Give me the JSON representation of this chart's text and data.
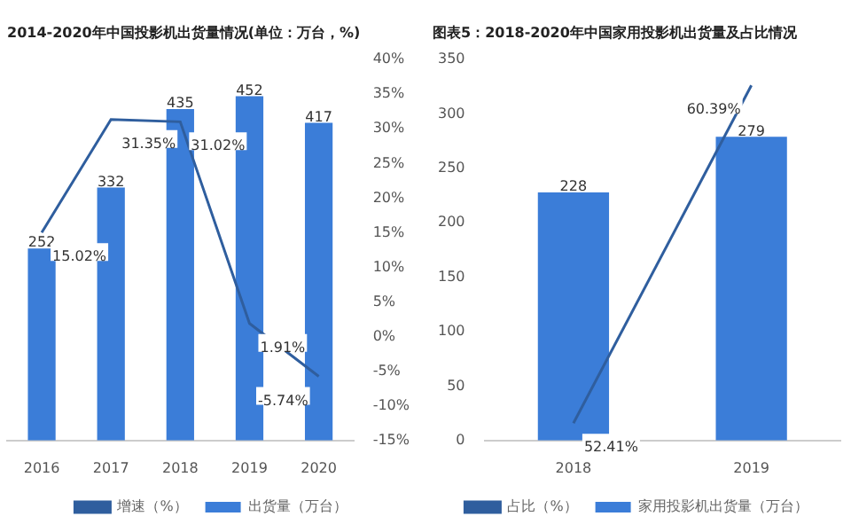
{
  "chart_data": [
    {
      "type": "bar",
      "title": "2014-2020年中国投影机出货量情况(单位：万台，%)",
      "categories": [
        "2016",
        "2017",
        "2018",
        "2019",
        "2020"
      ],
      "series": [
        {
          "name": "出货量（万台）",
          "color": "#3b7dd8",
          "values": [
            252,
            332,
            435,
            452,
            417
          ],
          "value_labels": [
            "252",
            "332",
            "435",
            "452",
            "417"
          ]
        },
        {
          "type": "line",
          "name": "增速（%）",
          "color": "#2f5e9e",
          "axis": "y2",
          "values": [
            15.02,
            31.35,
            31.02,
            1.91,
            -5.74
          ],
          "value_labels": [
            "15.02%",
            "31.35%",
            "31.02%",
            "1.91%",
            "-5.74%"
          ]
        }
      ],
      "y2lim": [
        -15,
        40
      ],
      "y2ticks": [
        {
          "value": -15,
          "label": "-15%"
        },
        {
          "value": -10,
          "label": "-10%"
        },
        {
          "value": -5,
          "label": "-5%"
        },
        {
          "value": 0,
          "label": "0%"
        },
        {
          "value": 5,
          "label": "5%"
        },
        {
          "value": 10,
          "label": "10%"
        },
        {
          "value": 15,
          "label": "15%"
        },
        {
          "value": 20,
          "label": "20%"
        },
        {
          "value": 25,
          "label": "25%"
        },
        {
          "value": 30,
          "label": "30%"
        },
        {
          "value": 35,
          "label": "35%"
        },
        {
          "value": 40,
          "label": "40%"
        }
      ],
      "legend": "bottom"
    },
    {
      "type": "bar",
      "title": "图表5：2018-2020年中国家用投影机出货量及占比情况",
      "categories": [
        "2018",
        "2019"
      ],
      "series": [
        {
          "name": "家用投影机出货量（万台）",
          "color": "#3b7dd8",
          "values": [
            228,
            279
          ],
          "value_labels": [
            "228",
            "279"
          ]
        },
        {
          "type": "line",
          "name": "占比（%）",
          "color": "#2f5e9e",
          "axis": "y2",
          "values": [
            52.41,
            60.39
          ],
          "value_labels": [
            "52.41%",
            "60.39%"
          ]
        }
      ],
      "ylim": [
        0,
        350
      ],
      "yticks": [
        0,
        50,
        100,
        150,
        200,
        250,
        300,
        350
      ],
      "legend": "bottom"
    }
  ]
}
